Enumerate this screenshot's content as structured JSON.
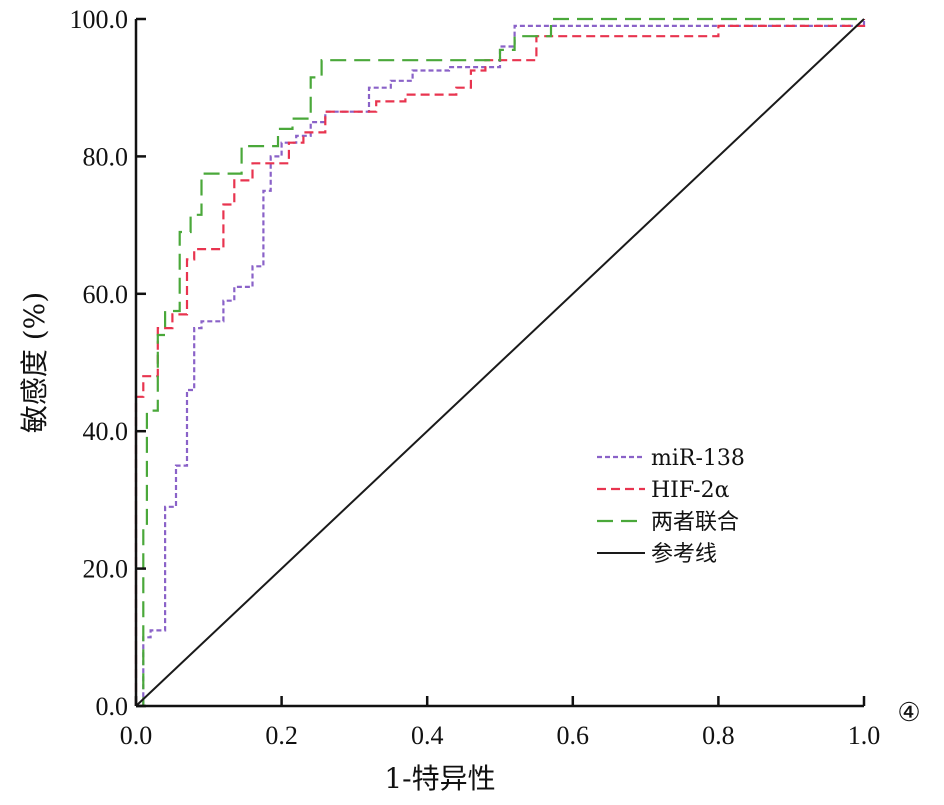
{
  "chart_data": {
    "type": "line",
    "title": "",
    "xlabel": "1-特异性",
    "ylabel": "敏感度 (%)",
    "xlim": [
      0,
      1
    ],
    "ylim": [
      0,
      100
    ],
    "x_ticks": [
      0.0,
      0.2,
      0.4,
      0.6,
      0.8,
      1.0
    ],
    "x_tick_labels": [
      "0.0",
      "0.2",
      "0.4",
      "0.6",
      "0.8",
      "1.0"
    ],
    "y_ticks": [
      0,
      20,
      40,
      60,
      80,
      100
    ],
    "y_tick_labels": [
      "0.0",
      "20.0",
      "40.0",
      "60.0",
      "80.0",
      "100.0"
    ],
    "panel_label": "④",
    "legend_position": "center-right",
    "grid": false,
    "series": [
      {
        "name": "miR-138",
        "color": "#8a62c8",
        "dash": "short",
        "points": [
          [
            0,
            0
          ],
          [
            0.01,
            0
          ],
          [
            0.01,
            10
          ],
          [
            0.02,
            10
          ],
          [
            0.02,
            11
          ],
          [
            0.04,
            11
          ],
          [
            0.04,
            29
          ],
          [
            0.055,
            29
          ],
          [
            0.055,
            35
          ],
          [
            0.07,
            35
          ],
          [
            0.07,
            46
          ],
          [
            0.08,
            46
          ],
          [
            0.08,
            55
          ],
          [
            0.09,
            55
          ],
          [
            0.09,
            56
          ],
          [
            0.12,
            56
          ],
          [
            0.12,
            59
          ],
          [
            0.135,
            59
          ],
          [
            0.135,
            61
          ],
          [
            0.16,
            61
          ],
          [
            0.16,
            64
          ],
          [
            0.175,
            64
          ],
          [
            0.175,
            75
          ],
          [
            0.185,
            75
          ],
          [
            0.185,
            80
          ],
          [
            0.2,
            80
          ],
          [
            0.2,
            82
          ],
          [
            0.22,
            82
          ],
          [
            0.22,
            83
          ],
          [
            0.24,
            83
          ],
          [
            0.24,
            85
          ],
          [
            0.26,
            85
          ],
          [
            0.26,
            86.5
          ],
          [
            0.32,
            86.5
          ],
          [
            0.32,
            90
          ],
          [
            0.35,
            90
          ],
          [
            0.35,
            91
          ],
          [
            0.38,
            91
          ],
          [
            0.38,
            92.5
          ],
          [
            0.43,
            92.5
          ],
          [
            0.43,
            93
          ],
          [
            0.5,
            93
          ],
          [
            0.5,
            96
          ],
          [
            0.52,
            96
          ],
          [
            0.52,
            99
          ],
          [
            1.0,
            99
          ],
          [
            1.0,
            100
          ]
        ]
      },
      {
        "name": "HIF-2α",
        "color": "#e8344f",
        "dash": "medium",
        "points": [
          [
            0,
            0
          ],
          [
            0,
            45
          ],
          [
            0.01,
            45
          ],
          [
            0.01,
            48
          ],
          [
            0.03,
            48
          ],
          [
            0.03,
            55
          ],
          [
            0.05,
            55
          ],
          [
            0.05,
            57
          ],
          [
            0.07,
            57
          ],
          [
            0.07,
            65
          ],
          [
            0.08,
            65
          ],
          [
            0.08,
            66.5
          ],
          [
            0.12,
            66.5
          ],
          [
            0.12,
            73
          ],
          [
            0.135,
            73
          ],
          [
            0.135,
            76.5
          ],
          [
            0.16,
            76.5
          ],
          [
            0.16,
            79
          ],
          [
            0.21,
            79
          ],
          [
            0.21,
            82
          ],
          [
            0.23,
            82
          ],
          [
            0.23,
            83.5
          ],
          [
            0.26,
            83.5
          ],
          [
            0.26,
            86.5
          ],
          [
            0.33,
            86.5
          ],
          [
            0.33,
            88
          ],
          [
            0.37,
            88
          ],
          [
            0.37,
            89
          ],
          [
            0.44,
            89
          ],
          [
            0.44,
            90
          ],
          [
            0.46,
            90
          ],
          [
            0.46,
            92.5
          ],
          [
            0.48,
            92.5
          ],
          [
            0.48,
            94
          ],
          [
            0.55,
            94
          ],
          [
            0.55,
            97.5
          ],
          [
            0.8,
            97.5
          ],
          [
            0.8,
            99
          ],
          [
            1.0,
            99
          ],
          [
            1.0,
            100
          ]
        ]
      },
      {
        "name": "两者联合",
        "color": "#4aa83a",
        "dash": "long",
        "points": [
          [
            0,
            0
          ],
          [
            0.01,
            0
          ],
          [
            0.01,
            26
          ],
          [
            0.015,
            26
          ],
          [
            0.015,
            43
          ],
          [
            0.03,
            43
          ],
          [
            0.03,
            54
          ],
          [
            0.04,
            54
          ],
          [
            0.04,
            57.5
          ],
          [
            0.06,
            57.5
          ],
          [
            0.06,
            69
          ],
          [
            0.075,
            69
          ],
          [
            0.075,
            71.5
          ],
          [
            0.09,
            71.5
          ],
          [
            0.09,
            77.5
          ],
          [
            0.145,
            77.5
          ],
          [
            0.145,
            81.5
          ],
          [
            0.195,
            81.5
          ],
          [
            0.195,
            84
          ],
          [
            0.215,
            84
          ],
          [
            0.215,
            85.5
          ],
          [
            0.24,
            85.5
          ],
          [
            0.24,
            91.5
          ],
          [
            0.255,
            91.5
          ],
          [
            0.255,
            94
          ],
          [
            0.5,
            94
          ],
          [
            0.5,
            95.5
          ],
          [
            0.52,
            95.5
          ],
          [
            0.52,
            97.5
          ],
          [
            0.57,
            97.5
          ],
          [
            0.57,
            100
          ],
          [
            1.0,
            100
          ]
        ]
      },
      {
        "name": "参考线",
        "color": "#1a1a1a",
        "dash": "solid",
        "points": [
          [
            0,
            0
          ],
          [
            1,
            100
          ]
        ]
      }
    ]
  }
}
